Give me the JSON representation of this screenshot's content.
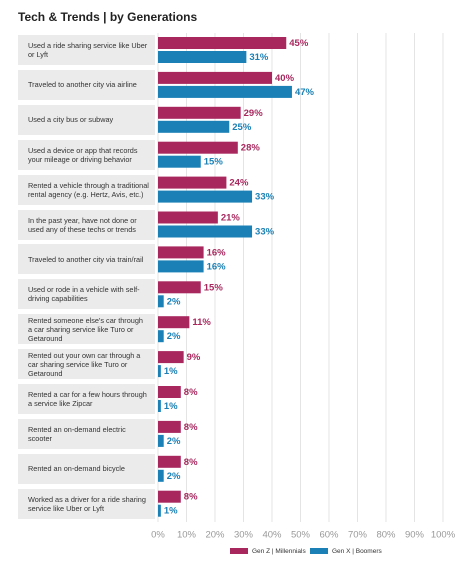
{
  "chart_data": {
    "type": "bar",
    "title": "Tech & Trends | by Generations",
    "categories": [
      "Used a ride sharing service like Uber or Lyft",
      "Traveled to another city via airline",
      "Used a city bus or subway",
      "Used a device or app that records your mileage or driving behavior",
      "Rented a vehicle through a traditional rental agency (e.g. Hertz, Avis, etc.)",
      "In the past year, have not done or used any of these techs or trends",
      "Traveled to another city via train/rail",
      "Used or rode in a vehicle with self-driving capabilities",
      "Rented someone else's car through a car sharing service like Turo or Getaround",
      "Rented out your own car through a car sharing service like Turo or Getaround",
      "Rented a car for a few hours through a service like Zipcar",
      "Rented an on-demand electric scooter",
      "Rented an on-demand bicycle",
      "Worked as a driver for a ride sharing service like Uber or Lyft"
    ],
    "series": [
      {
        "name": "Gen Z | Millennials",
        "color": "#a8285e",
        "values": [
          45,
          40,
          29,
          28,
          24,
          21,
          16,
          15,
          11,
          9,
          8,
          8,
          8,
          8
        ],
        "value_labels": [
          "45%",
          "40%",
          "29%",
          "28%",
          "24%",
          "21%",
          "16%",
          "15%",
          "11%",
          "9%",
          "8%",
          "8%",
          "8%",
          "8%"
        ]
      },
      {
        "name": "Gen X | Boomers",
        "color": "#1a80b6",
        "values": [
          31,
          47,
          25,
          15,
          33,
          33,
          16,
          2,
          2,
          1,
          1,
          2,
          2,
          1
        ],
        "value_labels": [
          "31%",
          "47%",
          "25%",
          "15%",
          "33%",
          "33%",
          "16%",
          "2%",
          "2%",
          "1%",
          "1%",
          "2%",
          "2%",
          "1%"
        ]
      }
    ],
    "xlim": [
      0,
      100
    ],
    "xticks": [
      {
        "value": 0,
        "label": "0%"
      },
      {
        "value": 10,
        "label": "10%"
      },
      {
        "value": 20,
        "label": "20%"
      },
      {
        "value": 30,
        "label": "30%"
      },
      {
        "value": 40,
        "label": "40%"
      },
      {
        "value": 50,
        "label": "50%"
      },
      {
        "value": 60,
        "label": "60%"
      },
      {
        "value": 70,
        "label": "70%"
      },
      {
        "value": 80,
        "label": "80%"
      },
      {
        "value": 90,
        "label": "90%"
      },
      {
        "value": 100,
        "label": "100%"
      }
    ],
    "grid": true
  }
}
